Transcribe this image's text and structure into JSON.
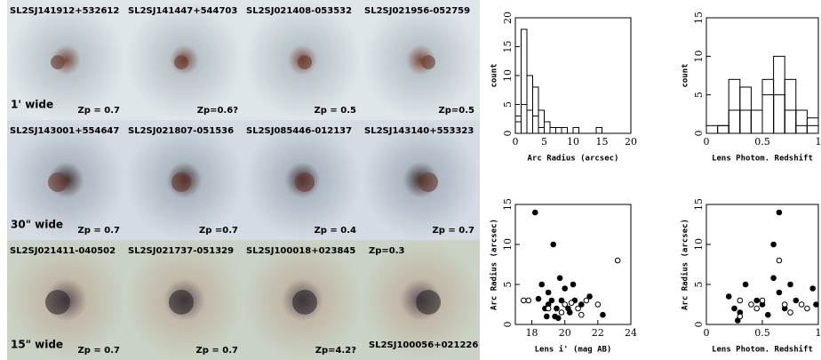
{
  "image_panels": [
    {
      "name": "SL2SJ141912+532612",
      "zp": "Zp = 0.7",
      "width_label": "1' wide"
    },
    {
      "name": "SL2SJ141447+544703",
      "zp": "Zp=0.6?"
    },
    {
      "name": "SL2SJ021408-053532",
      "zp": "Zp = 0.5"
    },
    {
      "name": "SL2SJ021956-052759",
      "zp": "Zp=0.5"
    },
    {
      "name": "SL2SJ143001+554647",
      "zp": "Zp = 0.7",
      "width_label": "30\" wide"
    },
    {
      "name": "SL2SJ021807-051536",
      "zp": "Zp =0.7"
    },
    {
      "name": "SL2SJ085446-012137",
      "zp": "Zp = 0.4"
    },
    {
      "name": "SL2SJ143140+553323",
      "zp": "Zp = 0.7"
    },
    {
      "name": "SL2SJ021411-040502",
      "zp": "Zp = 0.7",
      "width_label": "15\" wide"
    },
    {
      "name": "SL2SJ021737-051329",
      "zp": "Zp = 0.7"
    },
    {
      "name": "SL2SJ100018+023845",
      "zp": "Zp=4.2?"
    },
    {
      "name": "SL2SJ100056+021226",
      "zp": "Zp=0.3"
    }
  ],
  "chart_data": [
    {
      "type": "histogram",
      "x_label": "Arc Radius (arcsec)",
      "y_label": "count",
      "bins": [
        0,
        1,
        2,
        3,
        4,
        5,
        6,
        7,
        8,
        9,
        10,
        11,
        12,
        13,
        14,
        15
      ],
      "series": [
        {
          "color": "#000000",
          "values": [
            3,
            18,
            10,
            8,
            4,
            2,
            1,
            1,
            1,
            0,
            1,
            0,
            0,
            0,
            1
          ]
        },
        {
          "color": "#000000",
          "values": [
            2,
            5,
            4,
            3,
            1,
            0,
            0,
            0,
            0,
            0,
            0,
            0,
            0,
            0,
            0
          ]
        }
      ],
      "xlim": [
        0,
        20
      ],
      "xticks": [
        0,
        5,
        10,
        15,
        20
      ],
      "ylim": [
        0,
        20
      ],
      "yticks": [
        0,
        5,
        10,
        15,
        20
      ]
    },
    {
      "type": "histogram",
      "x_label": "Lens Photom. Redshift",
      "y_label": "count",
      "bins": [
        0,
        0.1,
        0.2,
        0.3,
        0.4,
        0.5,
        0.6,
        0.7,
        0.8,
        0.9,
        1.0
      ],
      "series": [
        {
          "color": "#000000",
          "values": [
            1,
            1,
            7,
            6,
            3,
            7,
            10,
            7,
            3,
            2
          ]
        },
        {
          "color": "#000000",
          "values": [
            0,
            1,
            3,
            3,
            3,
            5,
            5,
            3,
            1,
            1
          ]
        }
      ],
      "xlim": [
        0,
        1
      ],
      "xticks": [
        0,
        0.5,
        1
      ],
      "ylim": [
        0,
        15
      ],
      "yticks": [
        0,
        5,
        10,
        15
      ]
    },
    {
      "type": "scatter",
      "x_label": "Lens i' (mag AB)",
      "y_label": "Arc Radius (arcsec)",
      "series": [
        {
          "color": "#000000",
          "filled": true,
          "x": [
            18.2,
            19.3,
            18.4,
            18.6,
            18.8,
            19,
            19,
            19.2,
            19.4,
            19.5,
            19.6,
            19.8,
            20,
            20.2,
            20.5,
            20.6,
            21,
            21.5,
            22.3,
            19.7,
            18.9,
            20.3
          ],
          "values": [
            14,
            10,
            3.2,
            5,
            2,
            2.5,
            4,
            3,
            1,
            2,
            0.8,
            3,
            4.5,
            2,
            5,
            3,
            2.5,
            3.5,
            1.2,
            5.8,
            1,
            1.5
          ]
        },
        {
          "color": "#000000",
          "filled": false,
          "x": [
            23.2,
            17.5,
            17.8,
            19,
            19.8,
            20,
            20.8,
            21,
            21.3,
            22,
            20.4
          ],
          "values": [
            8,
            3,
            3,
            2,
            1.5,
            2.5,
            2,
            1.2,
            3,
            2.5,
            2.7
          ]
        }
      ],
      "xlim": [
        17,
        24
      ],
      "xticks": [
        18,
        20,
        22,
        24
      ],
      "ylim": [
        0,
        15
      ],
      "yticks": [
        0,
        5,
        10,
        15
      ]
    },
    {
      "type": "scatter",
      "x_label": "Lens Photom. Redshift",
      "y_label": "Arc Radius (arcsec)",
      "series": [
        {
          "color": "#000000",
          "filled": true,
          "x": [
            0.65,
            0.6,
            0.2,
            0.25,
            0.3,
            0.35,
            0.45,
            0.5,
            0.6,
            0.65,
            0.7,
            0.75,
            0.8,
            0.95,
            0.98,
            0.28,
            0.55
          ],
          "values": [
            14,
            10,
            3.5,
            2,
            1.5,
            5,
            3,
            2.5,
            5.8,
            4,
            2,
            5,
            3,
            4.5,
            2.5,
            0.5,
            1.2
          ]
        },
        {
          "color": "#000000",
          "filled": false,
          "x": [
            0.65,
            0.3,
            0.4,
            0.5,
            0.7,
            0.75,
            0.85,
            0.9,
            0.3,
            0.45
          ],
          "values": [
            8,
            3,
            2.5,
            3,
            2.5,
            1.5,
            2.5,
            2,
            1,
            2
          ]
        }
      ],
      "xlim": [
        0,
        1
      ],
      "xticks": [
        0,
        0.5,
        1
      ],
      "ylim": [
        0,
        15
      ],
      "yticks": [
        0,
        5,
        10,
        15
      ]
    }
  ]
}
